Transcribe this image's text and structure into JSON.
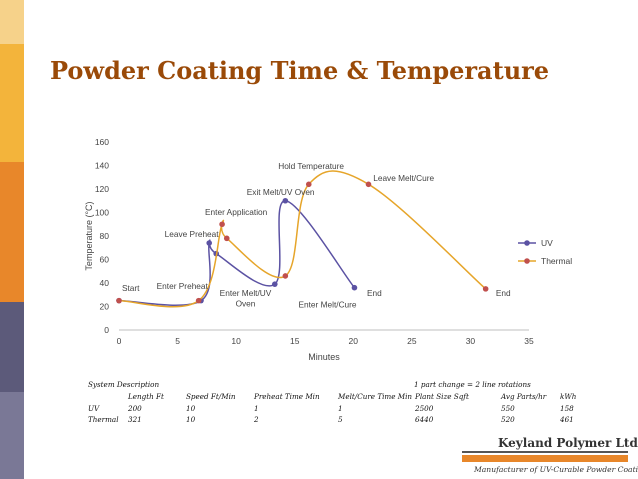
{
  "slide": {
    "title": "Powder Coating Time & Temperature",
    "accent_colors": [
      "#f6d28a",
      "#f3b43b",
      "#e8872a",
      "#5c5a7a",
      "#7a7896"
    ]
  },
  "chart_data": {
    "type": "line",
    "xlabel": "Minutes",
    "ylabel": "Temperature (°C)",
    "xlim": [
      0,
      35
    ],
    "ylim": [
      0,
      160
    ],
    "xticks": [
      0,
      5,
      10,
      15,
      20,
      25,
      30,
      35
    ],
    "yticks": [
      0,
      20,
      40,
      60,
      80,
      100,
      120,
      140,
      160
    ],
    "grid": false,
    "legend": "right",
    "series": [
      {
        "name": "UV",
        "color": "#5b52a3",
        "points": [
          [
            0,
            25
          ],
          [
            7,
            25
          ],
          [
            7.7,
            74
          ],
          [
            8.3,
            65
          ],
          [
            13.3,
            39
          ],
          [
            14.2,
            110
          ],
          [
            20.1,
            36
          ]
        ]
      },
      {
        "name": "Thermal",
        "color": "#c0504d",
        "line_color": "#e6a52a",
        "points": [
          [
            0,
            25
          ],
          [
            6.8,
            25
          ],
          [
            8.8,
            90
          ],
          [
            9.2,
            78
          ],
          [
            14.2,
            46
          ],
          [
            16.2,
            124
          ],
          [
            21.3,
            124
          ],
          [
            31.3,
            35
          ]
        ]
      }
    ],
    "annotations": [
      {
        "text": "Start",
        "x": 1.0,
        "y": 33
      },
      {
        "text": "Enter Preheat",
        "x": 5.4,
        "y": 35
      },
      {
        "text": "Leave Preheat",
        "x": 6.2,
        "y": 79
      },
      {
        "text": "Enter Application",
        "x": 10.0,
        "y": 98
      },
      {
        "text": "Exit Melt/UV Oven",
        "x": 13.8,
        "y": 115
      },
      {
        "text": "Hold Temperature",
        "x": 16.4,
        "y": 137
      },
      {
        "text": "Leave Melt/Cure",
        "x": 24.3,
        "y": 127
      },
      {
        "text": "Enter Melt/UV",
        "x": 10.8,
        "y": 29
      },
      {
        "text": "Oven",
        "x": 10.8,
        "y": 20
      },
      {
        "text": "Enter Melt/Cure",
        "x": 17.8,
        "y": 19
      },
      {
        "text": "End",
        "x": 21.8,
        "y": 29
      },
      {
        "text": "End",
        "x": 32.8,
        "y": 29
      }
    ]
  },
  "table": {
    "heading": "System Description",
    "note": "1 part change = 2 line rotations",
    "columns": [
      "Length Ft",
      "Speed Ft/Min",
      "Preheat Time Min",
      "Melt/Cure Time Min",
      "Plant Size Sqft",
      "Avg Parts/hr",
      "kWh"
    ],
    "rows": [
      {
        "label": "UV",
        "values": [
          "200",
          "10",
          "1",
          "1",
          "2500",
          "550",
          "158"
        ]
      },
      {
        "label": "Thermal",
        "values": [
          "321",
          "10",
          "2",
          "5",
          "6440",
          "520",
          "461"
        ]
      }
    ]
  },
  "logo": {
    "name": "Keyland Polymer Ltd.",
    "tagline": "Manufacturer of UV-Curable Powder Coatings"
  }
}
